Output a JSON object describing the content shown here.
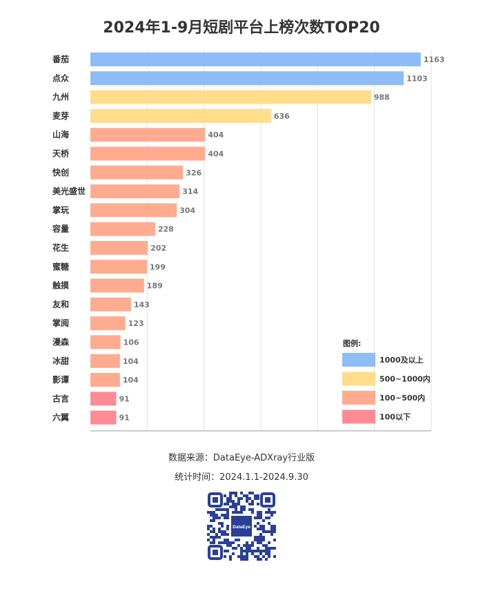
{
  "chart_data": {
    "type": "bar",
    "orientation": "horizontal",
    "title": "2024年1-9月短剧平台上榜次数TOP20",
    "categories": [
      "番茄",
      "点众",
      "九州",
      "麦芽",
      "山海",
      "天桥",
      "快创",
      "美光盛世",
      "掌玩",
      "容量",
      "花生",
      "蜜糖",
      "触摸",
      "友和",
      "掌阅",
      "漫森",
      "冰甜",
      "影谭",
      "古言",
      "六翼"
    ],
    "values": [
      1163,
      1103,
      988,
      636,
      404,
      404,
      326,
      314,
      304,
      228,
      202,
      199,
      189,
      143,
      123,
      106,
      104,
      104,
      91,
      91
    ],
    "xlim": [
      0,
      1200
    ],
    "grid": true,
    "legend_position": "bottom-right",
    "legend": {
      "title": "图例:",
      "items": [
        {
          "label": "1000及以上",
          "color": "#8dbcf7",
          "min": 1000,
          "max": null
        },
        {
          "label": "500~1000内",
          "color": "#ffdd8a",
          "min": 500,
          "max": 1000
        },
        {
          "label": "100~500内",
          "color": "#ffab8f",
          "min": 100,
          "max": 500
        },
        {
          "label": "100以下",
          "color": "#ff8b94",
          "min": null,
          "max": 100
        }
      ]
    }
  },
  "footer": {
    "source": "数据来源：DataEye-ADXray行业版",
    "period": "统计时间：2024.1.1-2024.9.30",
    "qr_brand": "DataEye"
  }
}
